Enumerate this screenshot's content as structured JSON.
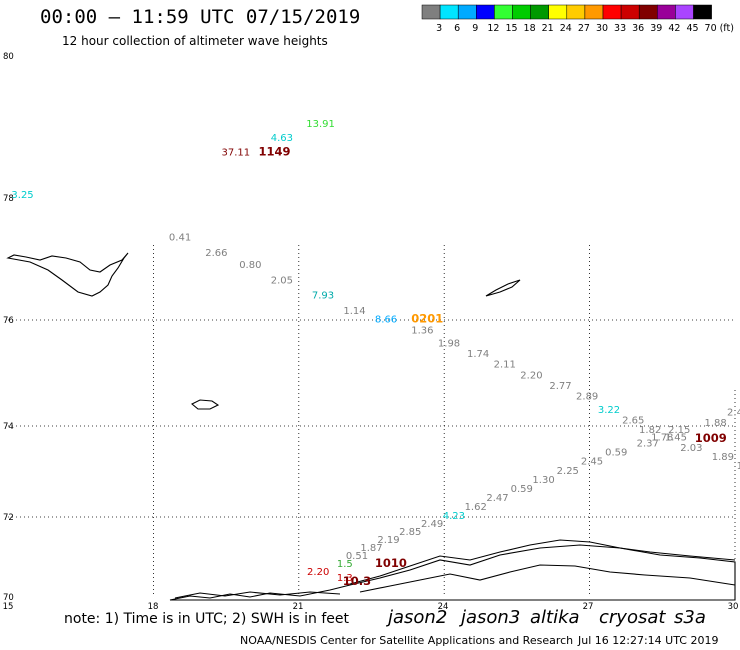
{
  "title": "00:00 – 11:59 UTC 07/15/2019",
  "subtitle": "12 hour collection of altimeter wave heights",
  "colorbar": {
    "labels": [
      "3",
      "6",
      "9",
      "12",
      "15",
      "18",
      "21",
      "24",
      "27",
      "30",
      "33",
      "36",
      "39",
      "42",
      "45",
      "70"
    ],
    "unit": "(ft)",
    "colors": [
      "#7f7f7f",
      "#00e5ff",
      "#00aaff",
      "#0000ff",
      "#33ff33",
      "#00cc00",
      "#009900",
      "#ffff00",
      "#ffcc00",
      "#ff9900",
      "#ff0000",
      "#cc0000",
      "#800000",
      "#990099",
      "#aa44ff",
      "#000000"
    ]
  },
  "map": {
    "lat_labels": [
      "80",
      "78",
      "76",
      "74",
      "72",
      "70"
    ],
    "lon_labels": [
      "15",
      "18",
      "21",
      "24",
      "27",
      "30"
    ]
  },
  "chart_data": {
    "type": "scatter",
    "annotations": [
      {
        "text": "3.25",
        "lon": 15.3,
        "lat": 78.0,
        "color": "#00cccc"
      },
      {
        "text": "37.11",
        "lon": 19.7,
        "lat": 78.6,
        "color": "#800000"
      },
      {
        "text": "1149",
        "lon": 20.5,
        "lat": 78.6,
        "color": "#800000",
        "bold": true
      },
      {
        "text": "4.63",
        "lon": 20.65,
        "lat": 78.8,
        "color": "#00cccc"
      },
      {
        "text": "13.91",
        "lon": 21.45,
        "lat": 79.0,
        "color": "#33dd33"
      },
      {
        "text": "0.41",
        "lon": 18.55,
        "lat": 77.3,
        "color": "#7f7f7f"
      },
      {
        "text": "2.66",
        "lon": 19.3,
        "lat": 77.05,
        "color": "#7f7f7f"
      },
      {
        "text": "0.80",
        "lon": 20.0,
        "lat": 76.85,
        "color": "#7f7f7f"
      },
      {
        "text": "2.05",
        "lon": 20.65,
        "lat": 76.6,
        "color": "#7f7f7f"
      },
      {
        "text": "7.93",
        "lon": 21.5,
        "lat": 76.35,
        "color": "#00aaaa"
      },
      {
        "text": "1.14",
        "lon": 22.15,
        "lat": 76.1,
        "color": "#7f7f7f"
      },
      {
        "text": "8.66",
        "lon": 22.8,
        "lat": 75.95,
        "color": "#00aaff"
      },
      {
        "text": "0201",
        "lon": 23.65,
        "lat": 75.95,
        "color": "#ff9900",
        "bold": true
      },
      {
        "text": "1.36",
        "lon": 23.55,
        "lat": 75.75,
        "color": "#7f7f7f"
      },
      {
        "text": "1.98",
        "lon": 24.1,
        "lat": 75.5,
        "color": "#7f7f7f"
      },
      {
        "text": "1.74",
        "lon": 24.7,
        "lat": 75.3,
        "color": "#7f7f7f"
      },
      {
        "text": "2.11",
        "lon": 25.25,
        "lat": 75.1,
        "color": "#7f7f7f"
      },
      {
        "text": "2.20",
        "lon": 25.8,
        "lat": 74.9,
        "color": "#7f7f7f"
      },
      {
        "text": "2.77",
        "lon": 26.4,
        "lat": 74.7,
        "color": "#7f7f7f"
      },
      {
        "text": "2.89",
        "lon": 26.95,
        "lat": 74.5,
        "color": "#7f7f7f"
      },
      {
        "text": "3.22",
        "lon": 27.4,
        "lat": 74.25,
        "color": "#00cccc"
      },
      {
        "text": "2.65",
        "lon": 27.9,
        "lat": 74.05,
        "color": "#7f7f7f"
      },
      {
        "text": "1.82",
        "lon": 28.25,
        "lat": 73.85,
        "color": "#7f7f7f"
      },
      {
        "text": "2.15",
        "lon": 28.85,
        "lat": 73.85,
        "color": "#7f7f7f"
      },
      {
        "text": "1.88",
        "lon": 29.6,
        "lat": 74.0,
        "color": "#7f7f7f"
      },
      {
        "text": "2.4",
        "lon": 30.0,
        "lat": 74.2,
        "color": "#7f7f7f"
      },
      {
        "text": "1.78",
        "lon": 28.5,
        "lat": 73.68,
        "color": "#7f7f7f"
      },
      {
        "text": "1.45",
        "lon": 28.78,
        "lat": 73.68,
        "color": "#7f7f7f"
      },
      {
        "text": "1009",
        "lon": 29.5,
        "lat": 73.65,
        "color": "#800000",
        "bold": true
      },
      {
        "text": "2.37",
        "lon": 28.2,
        "lat": 73.55,
        "color": "#7f7f7f"
      },
      {
        "text": "2.03",
        "lon": 29.1,
        "lat": 73.45,
        "color": "#7f7f7f"
      },
      {
        "text": "0.59",
        "lon": 27.55,
        "lat": 73.35,
        "color": "#7f7f7f"
      },
      {
        "text": "1.89",
        "lon": 29.75,
        "lat": 73.25,
        "color": "#7f7f7f"
      },
      {
        "text": "1",
        "lon": 30.1,
        "lat": 73.05,
        "color": "#7f7f7f"
      },
      {
        "text": "2.45",
        "lon": 27.05,
        "lat": 73.15,
        "color": "#7f7f7f"
      },
      {
        "text": "2.25",
        "lon": 26.55,
        "lat": 72.95,
        "color": "#7f7f7f"
      },
      {
        "text": "1.30",
        "lon": 26.05,
        "lat": 72.75,
        "color": "#7f7f7f"
      },
      {
        "text": "0.59",
        "lon": 25.6,
        "lat": 72.55,
        "color": "#7f7f7f"
      },
      {
        "text": "2.47",
        "lon": 25.1,
        "lat": 72.35,
        "color": "#7f7f7f"
      },
      {
        "text": "1.62",
        "lon": 24.65,
        "lat": 72.15,
        "color": "#7f7f7f"
      },
      {
        "text": "4.23",
        "lon": 24.2,
        "lat": 71.95,
        "color": "#00cccc"
      },
      {
        "text": "2.49",
        "lon": 23.75,
        "lat": 71.75,
        "color": "#7f7f7f"
      },
      {
        "text": "2.85",
        "lon": 23.3,
        "lat": 71.55,
        "color": "#7f7f7f"
      },
      {
        "text": "2.19",
        "lon": 22.85,
        "lat": 71.35,
        "color": "#7f7f7f"
      },
      {
        "text": "1.87",
        "lon": 22.5,
        "lat": 71.15,
        "color": "#7f7f7f"
      },
      {
        "text": "0.51",
        "lon": 22.2,
        "lat": 70.95,
        "color": "#7f7f7f"
      },
      {
        "text": "1010",
        "lon": 22.9,
        "lat": 70.75,
        "color": "#800000",
        "bold": true
      },
      {
        "text": "1.5",
        "lon": 21.95,
        "lat": 70.75,
        "color": "#33aa33"
      },
      {
        "text": "2.20",
        "lon": 21.4,
        "lat": 70.55,
        "color": "#cc0000"
      },
      {
        "text": "1.3",
        "lon": 21.95,
        "lat": 70.4,
        "color": "#cc0000"
      },
      {
        "text": "10.3",
        "lon": 22.2,
        "lat": 70.3,
        "color": "#800000",
        "bold": true
      }
    ]
  },
  "footer": {
    "note": "note:  1) Time is in UTC;  2) SWH is in feet",
    "satellites": [
      {
        "name": "jason2",
        "color": "#0000dd"
      },
      {
        "name": "jason3",
        "color": "#009900"
      },
      {
        "name": "altika",
        "color": "#ff9900"
      },
      {
        "name": "cryosat",
        "color": "#ee0000"
      },
      {
        "name": "s3a",
        "color": "#990000"
      }
    ],
    "credit": "NOAA/NESDIS Center for Satellite Applications and Research",
    "timestamp": "Jul 16 12:27:14 UTC 2019"
  }
}
